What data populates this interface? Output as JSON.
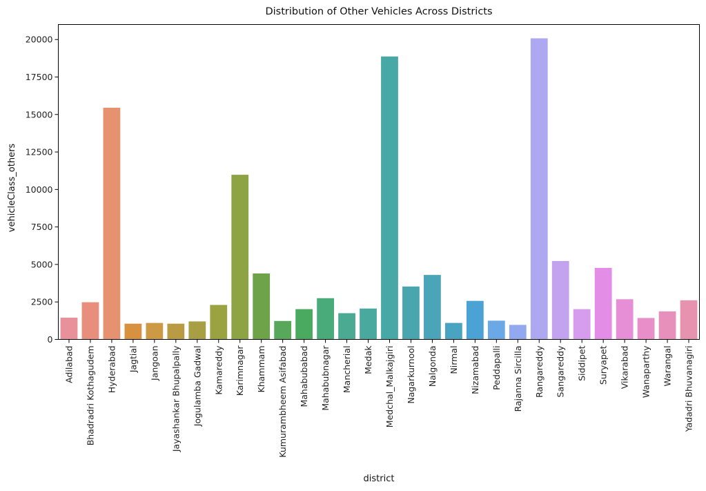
{
  "chart_data": {
    "type": "bar",
    "title": "Distribution of Other Vehicles Across Districts",
    "xlabel": "district",
    "ylabel": "vehicleClass_others",
    "ylim": [
      0,
      21000
    ],
    "yticks": [
      0,
      2500,
      5000,
      7500,
      10000,
      12500,
      15000,
      17500,
      20000
    ],
    "grid": false,
    "categories": [
      "Adilabad",
      "Bhadradri Kothagudem",
      "Hyderabad",
      "Jagtial",
      "Jangoan",
      "Jayashankar Bhupalpally",
      "Jogulamba Gadwal",
      "Kamareddy",
      "Karimnagar",
      "Khammam",
      "Kumurambheem Asifabad",
      "Mahabubabad",
      "Mahabubnagar",
      "Mancherial",
      "Medak",
      "Medchal_Malkajgiri",
      "Nagarkurnool",
      "Nalgonda",
      "Nirmal",
      "Nizamabad",
      "Peddapalli",
      "Rajanna Sircilla",
      "Rangareddy",
      "Sangareddy",
      "Siddipet",
      "Suryapet",
      "Vikarabad",
      "Wanaparthy",
      "Warangal",
      "Yadadri Bhuvanagiri"
    ],
    "values": [
      1450,
      2480,
      15450,
      1050,
      1100,
      1050,
      1200,
      2300,
      10980,
      4400,
      1230,
      2020,
      2750,
      1750,
      2060,
      18870,
      3530,
      4300,
      1100,
      2570,
      1250,
      970,
      20080,
      5230,
      2020,
      4770,
      2680,
      1430,
      1870,
      2610
    ],
    "colors": [
      "#e9919a",
      "#e88e7d",
      "#e6916f",
      "#d8913e",
      "#cc9a44",
      "#b99b44",
      "#a89e44",
      "#9aa33f",
      "#8ea344",
      "#6ea34a",
      "#58a85c",
      "#4aaa60",
      "#4aab7a",
      "#4aaa92",
      "#49a99e",
      "#47a8a6",
      "#4aa6ae",
      "#4aa5b8",
      "#48a4c0",
      "#4aa3d4",
      "#6aa9e6",
      "#93a9ef",
      "#aea8f0",
      "#c3a3ef",
      "#d69cee",
      "#e48de6",
      "#e68ed6",
      "#e88ec8",
      "#e790bb",
      "#e792ae"
    ]
  }
}
